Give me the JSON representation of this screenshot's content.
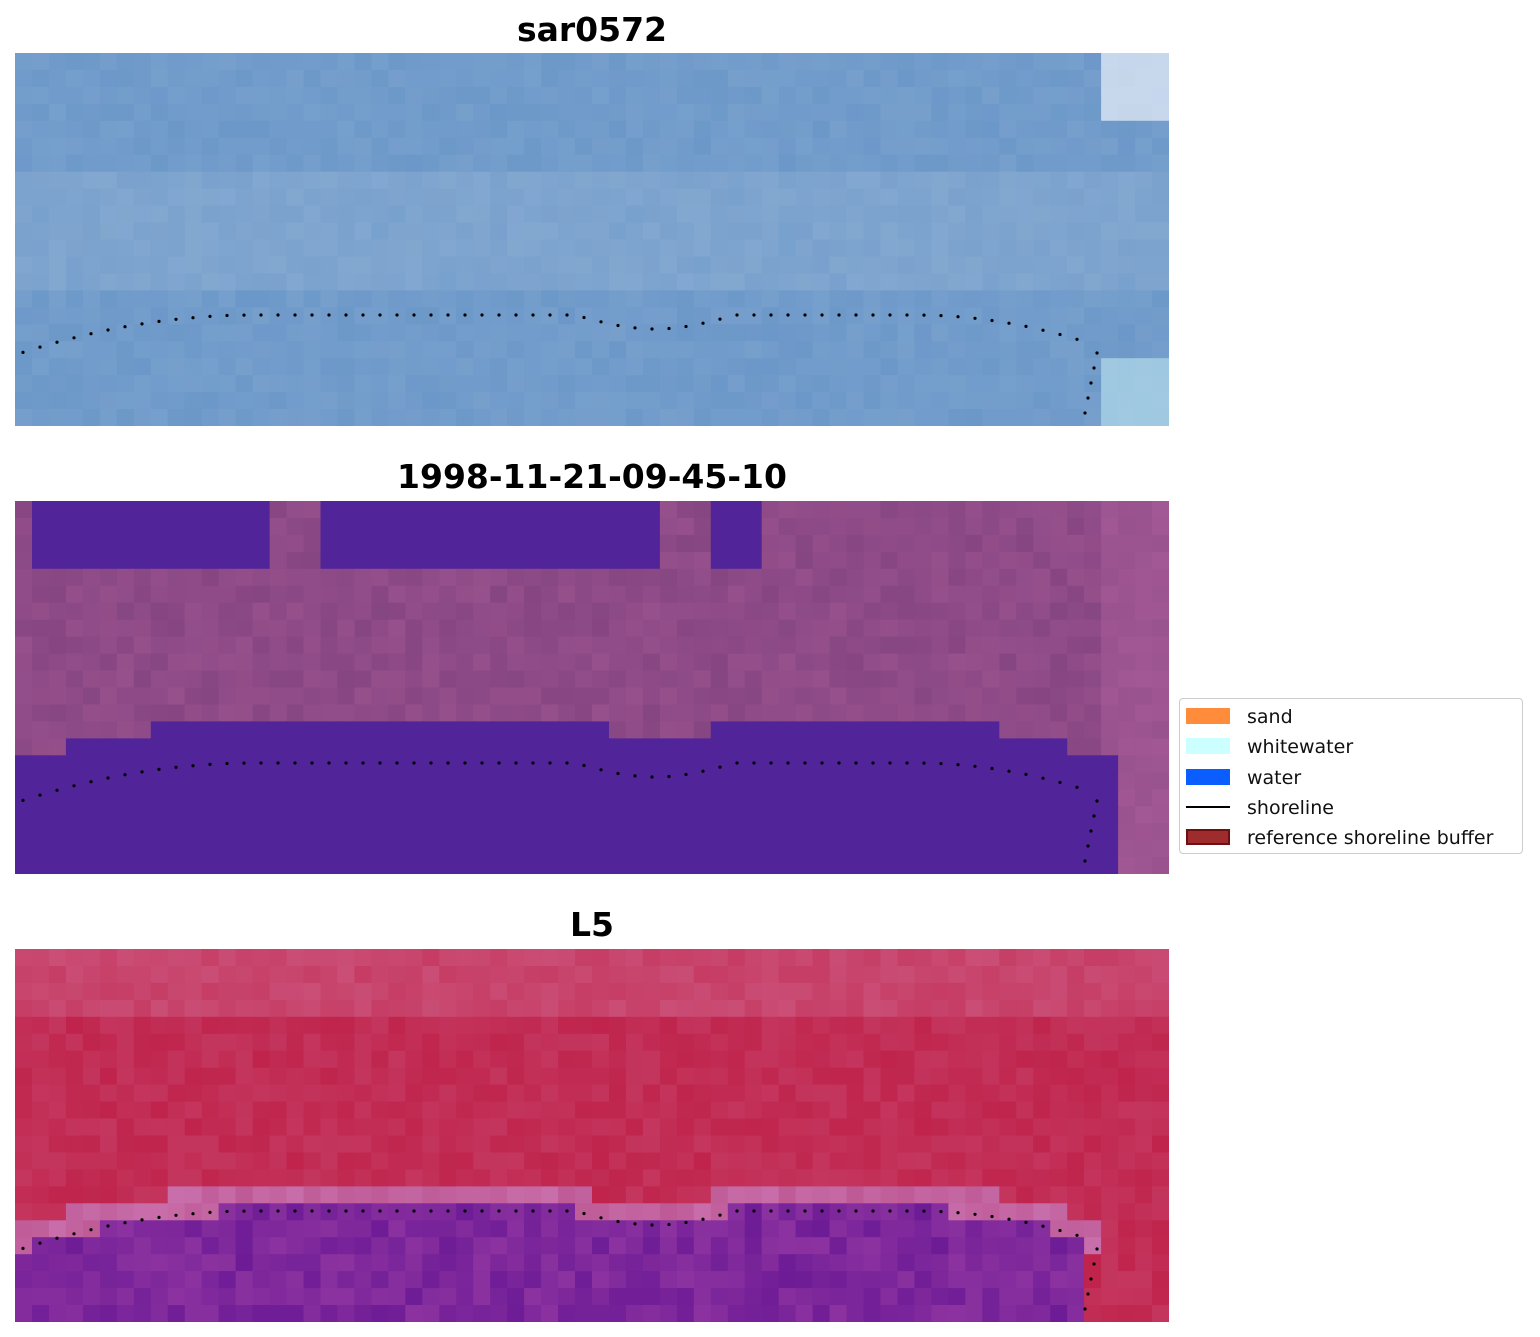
{
  "panels": [
    {
      "title": "sar0572",
      "style": "sar"
    },
    {
      "title": "1998-11-21-09-45-10",
      "style": "classified"
    },
    {
      "title": "L5",
      "style": "nir"
    }
  ],
  "legend": {
    "items": [
      {
        "label": "sand",
        "kind": "patch",
        "color": "#ff8c3a"
      },
      {
        "label": "whitewater",
        "kind": "patch",
        "color": "#ccffff"
      },
      {
        "label": "water",
        "kind": "patch",
        "color": "#0a5eff"
      },
      {
        "label": "shoreline",
        "kind": "line",
        "color": "#000000"
      },
      {
        "label": "reference shoreline buffer",
        "kind": "patch",
        "color": "#9e2c2c",
        "edge": "#6e1010"
      }
    ]
  },
  "colors": {
    "sar_base": "#6f9ec8",
    "classified_water": "#52249a",
    "classified_land": "#8a4b8a",
    "nir_land": "#c22a55",
    "nir_water": "#7a20a0",
    "shoreline_dots": "#000000"
  }
}
